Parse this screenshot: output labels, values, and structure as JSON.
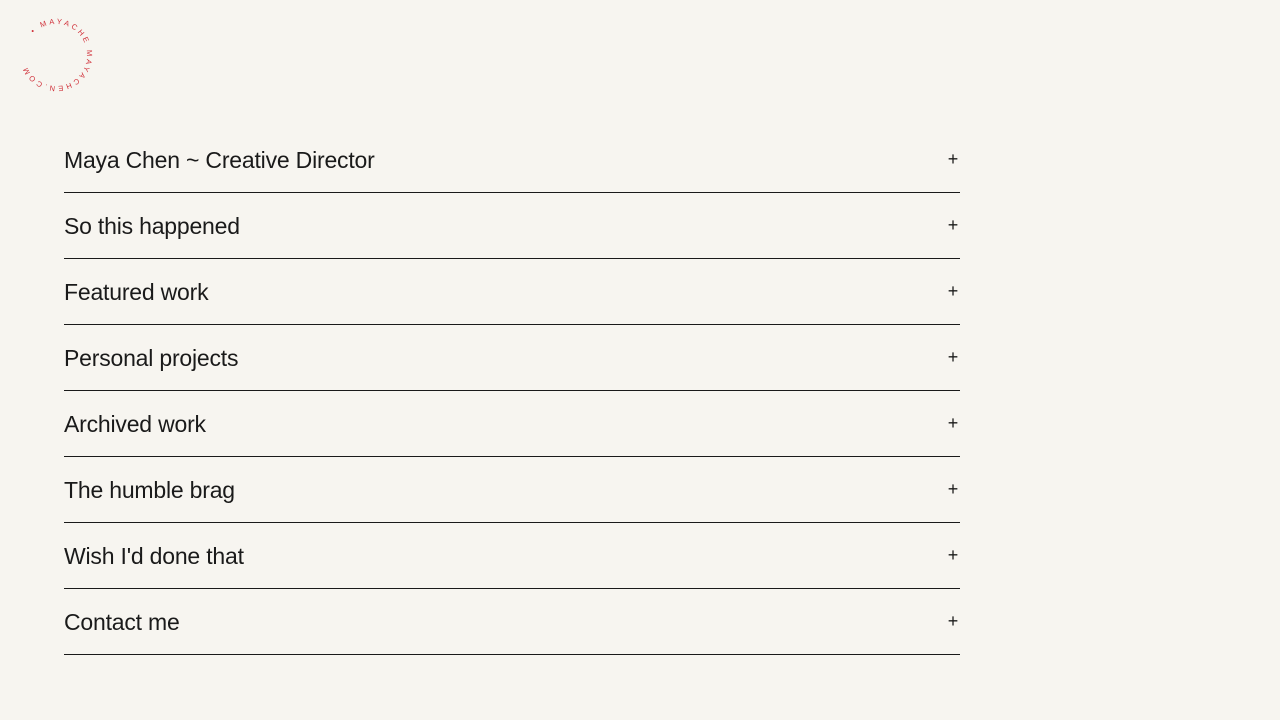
{
  "logo": {
    "text": "• MAYACHE MAYACHEN.COM",
    "color": "#d0313a"
  },
  "accordion": {
    "items": [
      {
        "label": "Maya Chen ~ Creative Director",
        "icon": "plus-icon",
        "toggle": "+"
      },
      {
        "label": "So this happened",
        "icon": "plus-icon",
        "toggle": "+"
      },
      {
        "label": "Featured work",
        "icon": "plus-icon",
        "toggle": "+"
      },
      {
        "label": "Personal projects",
        "icon": "plus-icon",
        "toggle": "+"
      },
      {
        "label": "Archived work",
        "icon": "plus-icon",
        "toggle": "+"
      },
      {
        "label": "The humble brag",
        "icon": "plus-icon",
        "toggle": "+"
      },
      {
        "label": "Wish I'd done that",
        "icon": "plus-icon",
        "toggle": "+"
      },
      {
        "label": "Contact me",
        "icon": "plus-icon",
        "toggle": "+"
      }
    ]
  }
}
